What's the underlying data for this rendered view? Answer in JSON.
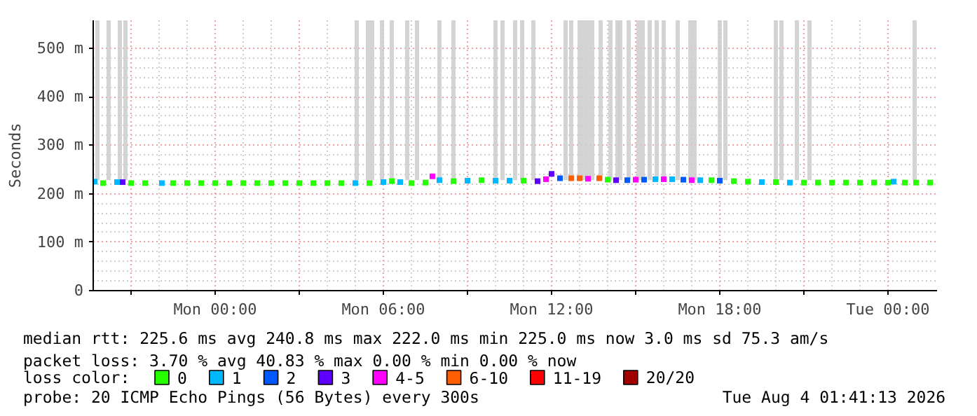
{
  "chart_data": {
    "type": "scatter",
    "ylabel": "Seconds",
    "legend_title": "loss color:",
    "legend": "bottom",
    "grid": true,
    "marker": "square",
    "xlim": [
      "2026-08-02T19:39",
      "2026-08-04T01:45"
    ],
    "ylim": [
      0,
      558
    ],
    "xticks": [
      {
        "value": "2026-08-02T21:00",
        "label": null
      },
      {
        "value": "2026-08-03T00:00",
        "label": "Mon 00:00"
      },
      {
        "value": "2026-08-03T03:00",
        "label": null
      },
      {
        "value": "2026-08-03T06:00",
        "label": "Mon 06:00"
      },
      {
        "value": "2026-08-03T09:00",
        "label": null
      },
      {
        "value": "2026-08-03T12:00",
        "label": "Mon 12:00"
      },
      {
        "value": "2026-08-03T15:00",
        "label": null
      },
      {
        "value": "2026-08-03T18:00",
        "label": "Mon 18:00"
      },
      {
        "value": "2026-08-03T21:00",
        "label": null
      },
      {
        "value": "2026-08-04T00:00",
        "label": "Tue 00:00"
      }
    ],
    "yticks": [
      0,
      {
        "value": 100,
        "label": "100 m"
      },
      {
        "value": 200,
        "label": "200 m"
      },
      {
        "value": 300,
        "label": "300 m"
      },
      {
        "value": 400,
        "label": "400 m"
      },
      {
        "value": 500,
        "label": "500 m"
      }
    ],
    "series": [
      {
        "type": "bar",
        "color": "#cccccc",
        "x": [
          "2026-08-02T19:48",
          "2026-08-02T20:12",
          "2026-08-02T20:36",
          "2026-08-02T20:48",
          "2026-08-03T05:03",
          "2026-08-03T05:27",
          "2026-08-03T05:36",
          "2026-08-03T05:57",
          "2026-08-03T06:18",
          "2026-08-03T06:51",
          "2026-08-03T07:12",
          "2026-08-03T08:00",
          "2026-08-03T08:30",
          "2026-08-03T10:00",
          "2026-08-03T10:15",
          "2026-08-03T10:42",
          "2026-08-03T10:57",
          "2026-08-03T11:21",
          "2026-08-03T12:30",
          "2026-08-03T12:42",
          "2026-08-03T13:00",
          "2026-08-03T13:09",
          "2026-08-03T13:18",
          "2026-08-03T13:27",
          "2026-08-03T13:45",
          "2026-08-03T14:06",
          "2026-08-03T14:21",
          "2026-08-03T14:27",
          "2026-08-03T14:45",
          "2026-08-03T15:06",
          "2026-08-03T15:15",
          "2026-08-03T15:30",
          "2026-08-03T15:45",
          "2026-08-03T16:00",
          "2026-08-03T16:30",
          "2026-08-03T16:57",
          "2026-08-03T17:06",
          "2026-08-03T18:00",
          "2026-08-03T18:12",
          "2026-08-03T20:00",
          "2026-08-03T20:12",
          "2026-08-03T20:45",
          "2026-08-03T21:12",
          "2026-08-04T00:57"
        ],
        "base": [
          228,
          228,
          228,
          228,
          228,
          228,
          228,
          228,
          228,
          228,
          228,
          228,
          228,
          228,
          228,
          228,
          228,
          228,
          228,
          228,
          228,
          228,
          228,
          228,
          228,
          228,
          228,
          228,
          228,
          228,
          228,
          228,
          228,
          228,
          228,
          228,
          228,
          228,
          228,
          228,
          228,
          228,
          228,
          228
        ],
        "values": [
          330,
          330,
          330,
          330,
          330,
          330,
          330,
          330,
          330,
          330,
          330,
          330,
          330,
          330,
          330,
          330,
          330,
          330,
          330,
          330,
          330,
          330,
          330,
          330,
          330,
          330,
          330,
          330,
          330,
          330,
          330,
          330,
          330,
          330,
          330,
          330,
          330,
          330,
          330,
          330,
          330,
          330,
          330,
          330
        ]
      },
      {
        "name": "0",
        "color": "#26ff00",
        "x": [
          "2026-08-02T20:00",
          "2026-08-02T21:00",
          "2026-08-02T21:30",
          "2026-08-02T22:30",
          "2026-08-02T23:00",
          "2026-08-02T23:30",
          "2026-08-03T00:00",
          "2026-08-03T00:30",
          "2026-08-03T01:00",
          "2026-08-03T01:30",
          "2026-08-03T02:00",
          "2026-08-03T02:30",
          "2026-08-03T03:00",
          "2026-08-03T03:30",
          "2026-08-03T04:00",
          "2026-08-03T04:30",
          "2026-08-03T05:30",
          "2026-08-03T06:18",
          "2026-08-03T07:00",
          "2026-08-03T07:30",
          "2026-08-03T08:30",
          "2026-08-03T09:30",
          "2026-08-03T11:00",
          "2026-08-03T14:00",
          "2026-08-03T17:42",
          "2026-08-03T18:30",
          "2026-08-03T19:00",
          "2026-08-03T20:00",
          "2026-08-03T21:00",
          "2026-08-03T21:30",
          "2026-08-03T22:00",
          "2026-08-03T22:30",
          "2026-08-03T23:00",
          "2026-08-03T23:30",
          "2026-08-04T00:00",
          "2026-08-04T00:36",
          "2026-08-04T01:00",
          "2026-08-04T01:30"
        ],
        "values": [
          222,
          222,
          222,
          222,
          222,
          222,
          222,
          222,
          222,
          222,
          222,
          222,
          222,
          222,
          222,
          222,
          222,
          226,
          222,
          223,
          226,
          228,
          227,
          229,
          228,
          226,
          225,
          224,
          223,
          223,
          223,
          223,
          223,
          223,
          223,
          223,
          223,
          223
        ]
      },
      {
        "name": "1",
        "color": "#00b8ff",
        "x": [
          "2026-08-02T19:42",
          "2026-08-02T20:30",
          "2026-08-02T22:06",
          "2026-08-03T05:00",
          "2026-08-03T06:00",
          "2026-08-03T06:36",
          "2026-08-03T08:00",
          "2026-08-03T09:00",
          "2026-08-03T10:00",
          "2026-08-03T10:30",
          "2026-08-03T15:42",
          "2026-08-03T16:18",
          "2026-08-03T17:18",
          "2026-08-03T19:30",
          "2026-08-03T20:30",
          "2026-08-04T00:12"
        ],
        "values": [
          225,
          224,
          222,
          222,
          224,
          224,
          228,
          227,
          227,
          227,
          230,
          230,
          228,
          224,
          223,
          225
        ]
      },
      {
        "name": "2",
        "color": "#0059ff",
        "x": [
          "2026-08-03T12:18",
          "2026-08-03T14:42",
          "2026-08-03T15:18",
          "2026-08-03T16:42",
          "2026-08-03T18:00"
        ],
        "values": [
          232,
          228,
          229,
          229,
          227
        ]
      },
      {
        "name": "3",
        "color": "#5e00ff",
        "x": [
          "2026-08-02T20:42",
          "2026-08-03T11:30",
          "2026-08-03T12:00",
          "2026-08-03T14:18"
        ],
        "values": [
          224,
          226,
          241,
          228
        ]
      },
      {
        "name": "4-5",
        "color": "#ff00ff",
        "x": [
          "2026-08-03T07:45",
          "2026-08-03T11:48",
          "2026-08-03T13:18",
          "2026-08-03T15:00",
          "2026-08-03T16:00",
          "2026-08-03T17:00"
        ],
        "values": [
          236,
          230,
          231,
          229,
          230,
          228
        ]
      },
      {
        "name": "6-10",
        "color": "#ff5e00",
        "x": [
          "2026-08-03T12:42",
          "2026-08-03T13:00",
          "2026-08-03T13:42"
        ],
        "values": [
          232,
          232,
          232
        ]
      },
      {
        "name": "11-19",
        "color": "#ff0000"
      },
      {
        "name": "20/20",
        "color": "#a10000"
      }
    ],
    "annotations": [
      "median rtt:  225.6 ms avg  240.8 ms max  222.0 ms min  225.0 ms now  3.0 ms sd  75.3   am/s",
      "packet loss: 3.70 % avg  40.83 % max  0.00 % min  0.00 % now",
      "probe:       20 ICMP Echo Pings (56 Bytes) every 300s",
      "Tue Aug  4 01:41:13 2026"
    ]
  }
}
